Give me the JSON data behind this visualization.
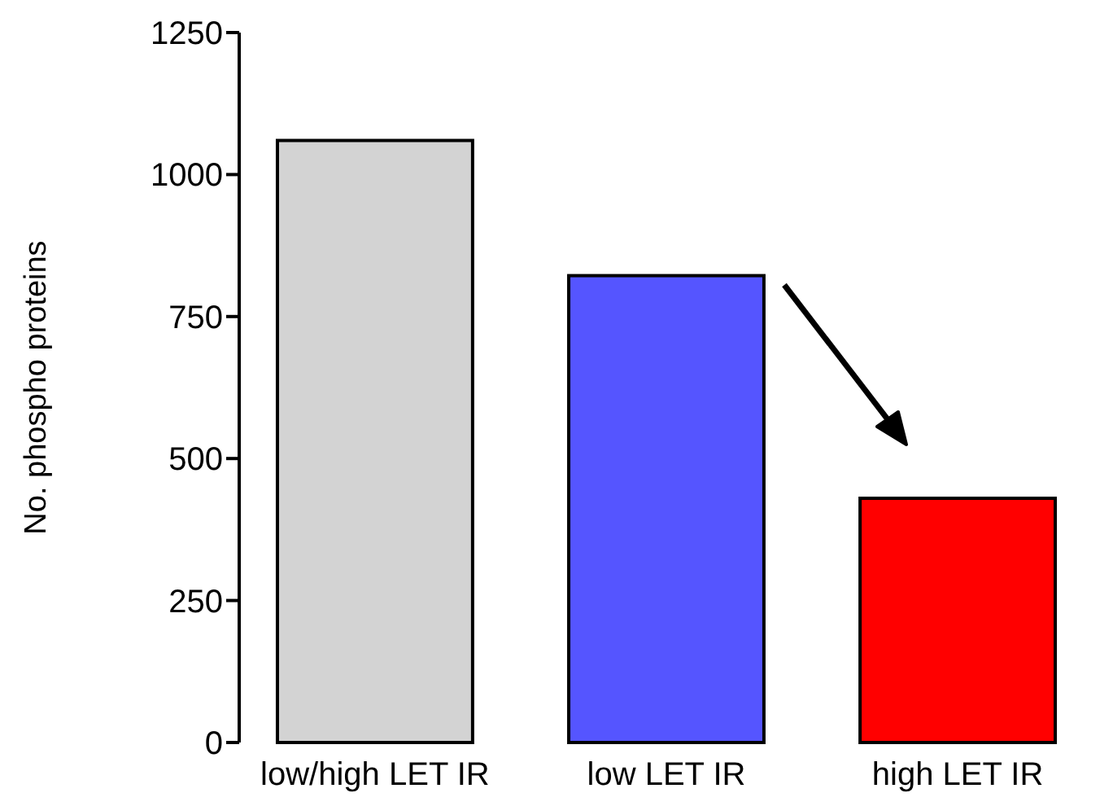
{
  "chart_data": {
    "type": "bar",
    "ylabel": "No. phospho proteins",
    "categories": [
      "low/high LET IR",
      "low LET IR",
      "high LET IR"
    ],
    "values": [
      1060,
      822,
      430
    ],
    "colors": [
      "#d3d3d3",
      "#5555ff",
      "#ff0000"
    ],
    "ylim": [
      0,
      1250
    ],
    "yticks": [
      0,
      250,
      500,
      750,
      1000,
      1250
    ],
    "grid": false
  }
}
